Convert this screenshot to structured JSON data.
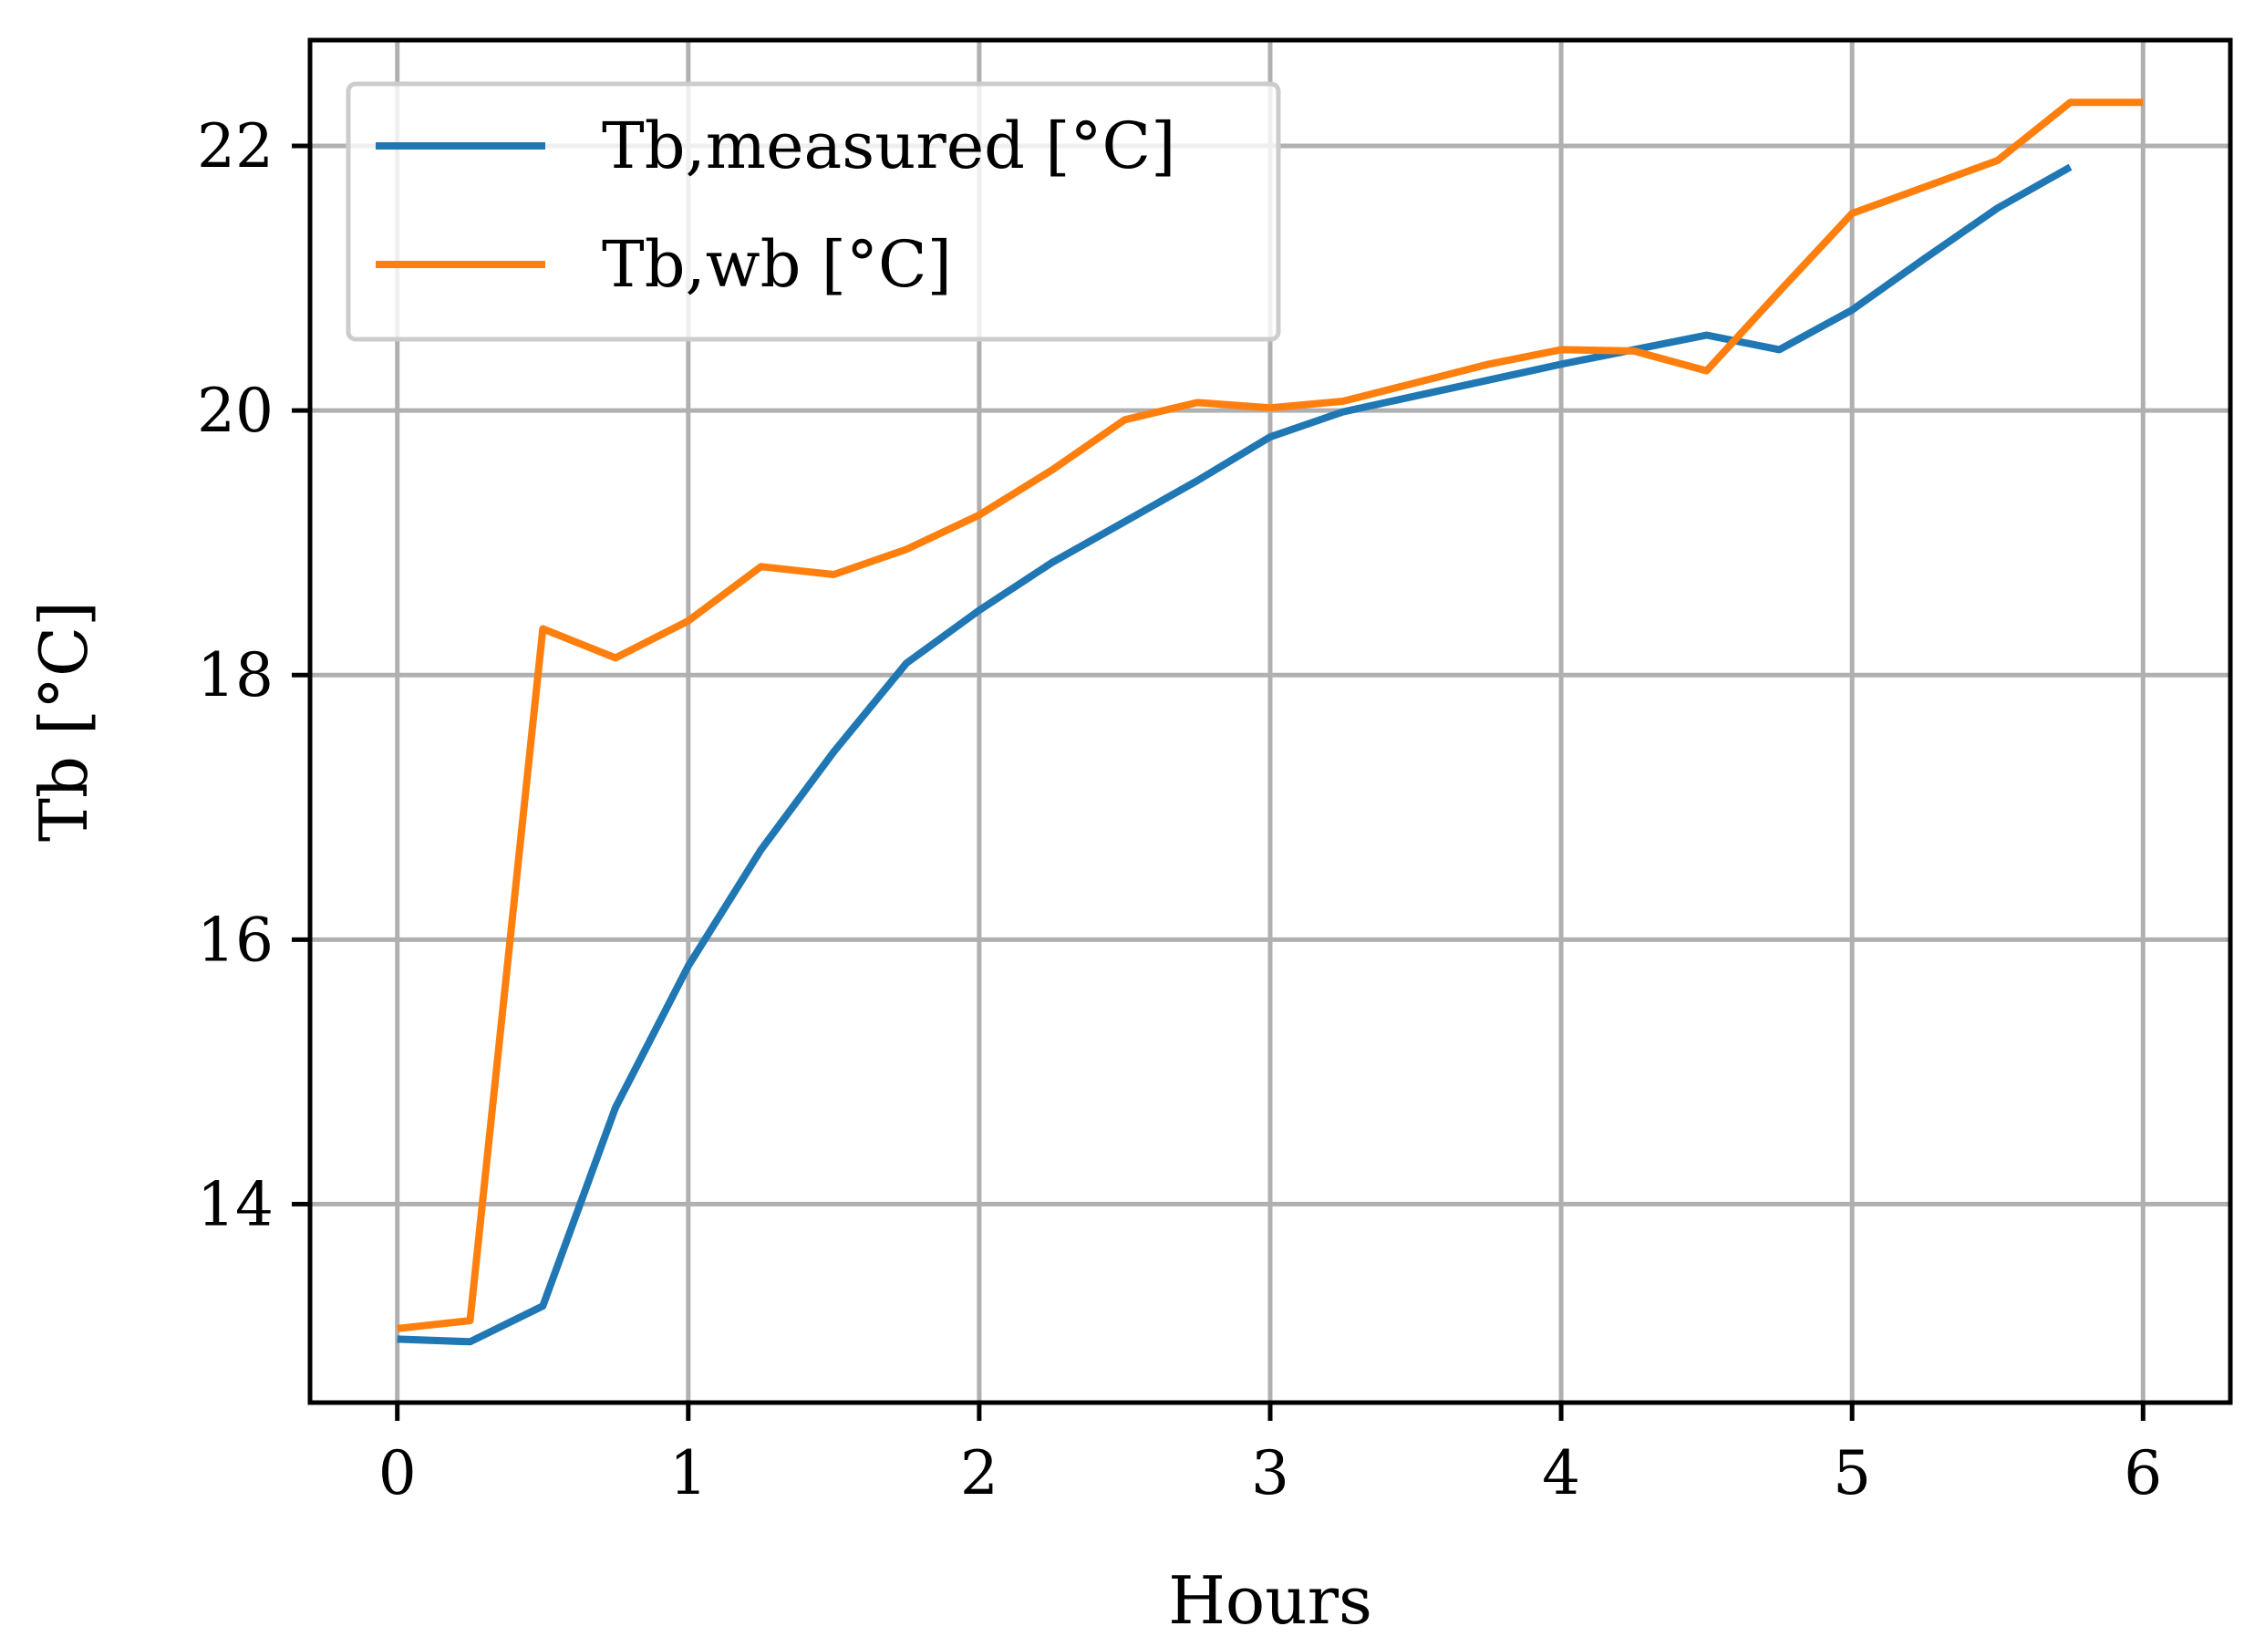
{
  "chart_data": {
    "type": "line",
    "title": "",
    "xlabel": "Hours",
    "ylabel": "Tb [°C]",
    "xlim": [
      -0.3,
      6.3
    ],
    "ylim": [
      12.5,
      22.8
    ],
    "xticks": [
      0,
      1,
      2,
      3,
      4,
      5,
      6
    ],
    "yticks": [
      14,
      16,
      18,
      20,
      22
    ],
    "grid": true,
    "legend_position": "top-left",
    "series": [
      {
        "name": "Tb,measured [°C]",
        "color": "#1f77b4",
        "x": [
          0,
          0.25,
          0.5,
          0.75,
          1.0,
          1.25,
          1.5,
          1.75,
          2.0,
          2.25,
          2.5,
          2.75,
          3.0,
          3.25,
          3.5,
          3.75,
          4.0,
          4.25,
          4.5,
          4.75,
          5.0,
          5.25,
          5.5,
          5.75
        ],
        "y": [
          12.98,
          12.96,
          13.23,
          14.73,
          15.8,
          16.68,
          17.42,
          18.09,
          18.49,
          18.85,
          19.16,
          19.47,
          19.8,
          19.99,
          20.11,
          20.23,
          20.35,
          20.46,
          20.57,
          20.46,
          20.76,
          21.15,
          21.53,
          21.84
        ]
      },
      {
        "name": "Tb,wb [°C]",
        "color": "#ff7f0e",
        "x": [
          0,
          0.25,
          0.5,
          0.75,
          1.0,
          1.25,
          1.5,
          1.75,
          2.0,
          2.25,
          2.5,
          2.75,
          3.0,
          3.25,
          3.5,
          3.75,
          4.0,
          4.25,
          4.5,
          4.75,
          5.0,
          5.25,
          5.5,
          5.75,
          6.0
        ],
        "y": [
          13.06,
          13.12,
          18.35,
          18.13,
          18.41,
          18.82,
          18.76,
          18.95,
          19.21,
          19.55,
          19.93,
          20.06,
          20.02,
          20.07,
          20.21,
          20.35,
          20.46,
          20.45,
          20.3,
          20.9,
          21.49,
          21.69,
          21.89,
          22.33,
          22.33
        ]
      }
    ]
  }
}
